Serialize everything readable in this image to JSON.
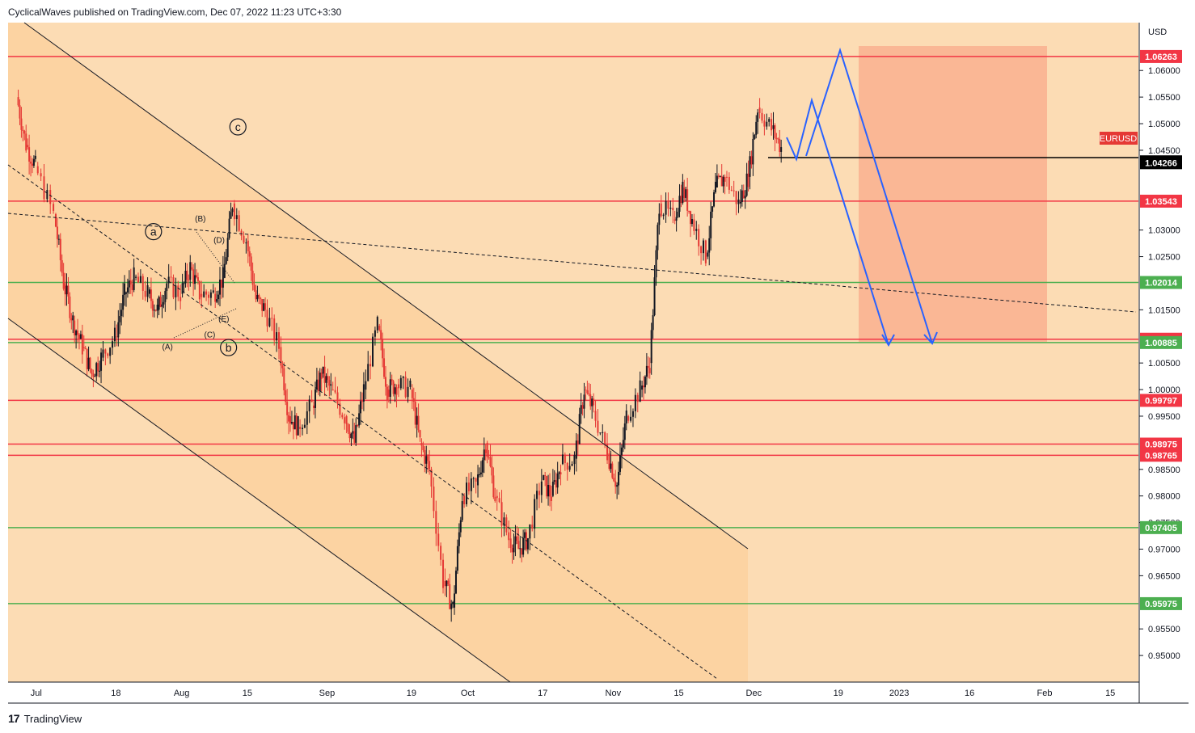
{
  "header": {
    "text": "CyclicalWaves published on TradingView.com, Dec 07, 2022 11:23 UTC+3:30"
  },
  "footer": {
    "logo_glyph": "17",
    "brand": "TradingView"
  },
  "colors": {
    "background": "#fcdcb4",
    "channel_fill": "#fbd19e",
    "target_box": "#f9b08f",
    "resistance": "#f23645",
    "support": "#4caf50",
    "bull_candle": "#131722",
    "bear_candle": "#e53935",
    "projection": "#2962ff",
    "current_price": "#000000"
  },
  "chart_data": {
    "type": "candlestick",
    "symbol": "EURUSD",
    "currency": "USD",
    "y_range": [
      0.945,
      1.069
    ],
    "x_axis_ticks": [
      "Jul",
      "18",
      "Aug",
      "15",
      "Sep",
      "19",
      "Oct",
      "17",
      "Nov",
      "15",
      "Dec",
      "19",
      "2023",
      "16",
      "Feb",
      "15"
    ],
    "y_axis_ticks": [
      "1.06000",
      "1.05500",
      "1.05000",
      "1.04500",
      "1.03000",
      "1.02500",
      "1.01500",
      "1.00500",
      "1.00000",
      "0.99500",
      "0.98500",
      "0.98000",
      "0.97500",
      "0.97000",
      "0.96500",
      "0.95500",
      "0.95000"
    ],
    "resistance_levels": [
      {
        "value": 1.06263,
        "label": "1.06263"
      },
      {
        "value": 1.03543,
        "label": "1.03543"
      },
      {
        "value": 1.00947,
        "label": "1.00947"
      },
      {
        "value": 0.99797,
        "label": "0.99797"
      },
      {
        "value": 0.98975,
        "label": "0.98975"
      },
      {
        "value": 0.98765,
        "label": "0.98765"
      }
    ],
    "support_levels": [
      {
        "value": 1.02014,
        "label": "1.02014"
      },
      {
        "value": 1.00885,
        "label": "1.00885"
      },
      {
        "value": 0.97405,
        "label": "0.97405"
      },
      {
        "value": 0.95975,
        "label": "0.95975"
      }
    ],
    "current_levels": [
      {
        "value": 1.04283,
        "label": "1.04283"
      },
      {
        "value": 1.04266,
        "label": "1.04266"
      }
    ],
    "wave_labels": [
      {
        "text": "c",
        "circled": true,
        "x": "2022-08-13",
        "y": 1.0494
      },
      {
        "text": "a",
        "circled": true,
        "x": "2022-07-26",
        "y": 1.0297
      },
      {
        "text": "b",
        "circled": true,
        "x": "2022-08-11",
        "y": 1.0079
      },
      {
        "text": "(B)",
        "circled": false,
        "x": "2022-08-05",
        "y": 1.0316
      },
      {
        "text": "(D)",
        "circled": false,
        "x": "2022-08-09",
        "y": 1.0276
      },
      {
        "text": "(E)",
        "circled": false,
        "x": "2022-08-10",
        "y": 1.0128
      },
      {
        "text": "(C)",
        "circled": false,
        "x": "2022-08-07",
        "y": 1.0098
      },
      {
        "text": "(A)",
        "circled": false,
        "x": "2022-07-29",
        "y": 1.0075
      }
    ],
    "closes": [
      {
        "date": "2022-06-27",
        "close": 1.055
      },
      {
        "date": "2022-06-29",
        "close": 1.046
      },
      {
        "date": "2022-07-01",
        "close": 1.042
      },
      {
        "date": "2022-07-05",
        "close": 1.033
      },
      {
        "date": "2022-07-07",
        "close": 1.02
      },
      {
        "date": "2022-07-09",
        "close": 1.013
      },
      {
        "date": "2022-07-11",
        "close": 1.008
      },
      {
        "date": "2022-07-13",
        "close": 1.003
      },
      {
        "date": "2022-07-15",
        "close": 1.006
      },
      {
        "date": "2022-07-18",
        "close": 1.01
      },
      {
        "date": "2022-07-20",
        "close": 1.018
      },
      {
        "date": "2022-07-22",
        "close": 1.021
      },
      {
        "date": "2022-07-25",
        "close": 1.018
      },
      {
        "date": "2022-07-27",
        "close": 1.015
      },
      {
        "date": "2022-07-29",
        "close": 1.02
      },
      {
        "date": "2022-08-01",
        "close": 1.018
      },
      {
        "date": "2022-08-03",
        "close": 1.023
      },
      {
        "date": "2022-08-05",
        "close": 1.018
      },
      {
        "date": "2022-08-08",
        "close": 1.018
      },
      {
        "date": "2022-08-10",
        "close": 1.021
      },
      {
        "date": "2022-08-12",
        "close": 1.035
      },
      {
        "date": "2022-08-15",
        "close": 1.028
      },
      {
        "date": "2022-08-17",
        "close": 1.017
      },
      {
        "date": "2022-08-19",
        "close": 1.015
      },
      {
        "date": "2022-08-22",
        "close": 1.008
      },
      {
        "date": "2022-08-24",
        "close": 0.995
      },
      {
        "date": "2022-08-26",
        "close": 0.993
      },
      {
        "date": "2022-08-29",
        "close": 0.997
      },
      {
        "date": "2022-08-31",
        "close": 1.003
      },
      {
        "date": "2022-09-02",
        "close": 1.0
      },
      {
        "date": "2022-09-05",
        "close": 0.995
      },
      {
        "date": "2022-09-07",
        "close": 0.99
      },
      {
        "date": "2022-09-09",
        "close": 1.0
      },
      {
        "date": "2022-09-12",
        "close": 1.012
      },
      {
        "date": "2022-09-14",
        "close": 1.0
      },
      {
        "date": "2022-09-16",
        "close": 1.001
      },
      {
        "date": "2022-09-19",
        "close": 1.0
      },
      {
        "date": "2022-09-21",
        "close": 0.99
      },
      {
        "date": "2022-09-23",
        "close": 0.985
      },
      {
        "date": "2022-09-26",
        "close": 0.964
      },
      {
        "date": "2022-09-28",
        "close": 0.959
      },
      {
        "date": "2022-09-30",
        "close": 0.98
      },
      {
        "date": "2022-10-03",
        "close": 0.982
      },
      {
        "date": "2022-10-05",
        "close": 0.99
      },
      {
        "date": "2022-10-07",
        "close": 0.98
      },
      {
        "date": "2022-10-10",
        "close": 0.972
      },
      {
        "date": "2022-10-12",
        "close": 0.97
      },
      {
        "date": "2022-10-14",
        "close": 0.972
      },
      {
        "date": "2022-10-17",
        "close": 0.983
      },
      {
        "date": "2022-10-19",
        "close": 0.98
      },
      {
        "date": "2022-10-21",
        "close": 0.986
      },
      {
        "date": "2022-10-24",
        "close": 0.987
      },
      {
        "date": "2022-10-26",
        "close": 1.0
      },
      {
        "date": "2022-10-28",
        "close": 0.996
      },
      {
        "date": "2022-10-31",
        "close": 0.988
      },
      {
        "date": "2022-11-02",
        "close": 0.982
      },
      {
        "date": "2022-11-04",
        "close": 0.995
      },
      {
        "date": "2022-11-07",
        "close": 1.0
      },
      {
        "date": "2022-11-09",
        "close": 1.005
      },
      {
        "date": "2022-11-11",
        "close": 1.035
      },
      {
        "date": "2022-11-14",
        "close": 1.032
      },
      {
        "date": "2022-11-16",
        "close": 1.038
      },
      {
        "date": "2022-11-18",
        "close": 1.032
      },
      {
        "date": "2022-11-21",
        "close": 1.025
      },
      {
        "date": "2022-11-23",
        "close": 1.038
      },
      {
        "date": "2022-11-25",
        "close": 1.04
      },
      {
        "date": "2022-11-28",
        "close": 1.035
      },
      {
        "date": "2022-11-30",
        "close": 1.04
      },
      {
        "date": "2022-12-02",
        "close": 1.053
      },
      {
        "date": "2022-12-05",
        "close": 1.049
      },
      {
        "date": "2022-12-07",
        "close": 1.0455
      }
    ]
  }
}
